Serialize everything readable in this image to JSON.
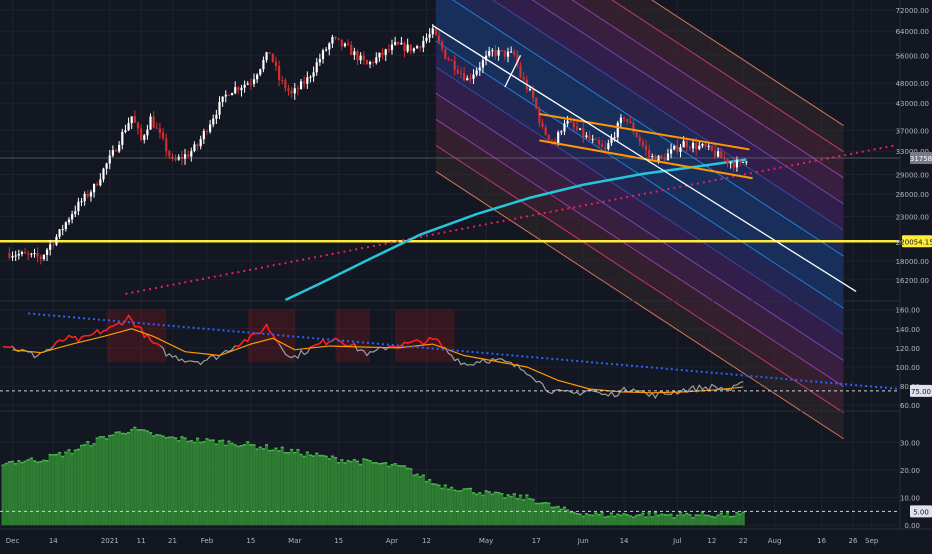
{
  "theme": {
    "background": "#131722",
    "grid": "#1e2230",
    "axis_text": "#b2b5be",
    "up": "#ffffff",
    "down": "#d32f2f",
    "ma": "#26c6da",
    "support": "#ffeb3b",
    "dotted_trend": "#e91e63",
    "wedge": "#ff9800",
    "osc_main": "#9e9e9e",
    "osc_hot": "#ff1a1a",
    "osc_signal": "#ff9800",
    "osc_trend": "#2962ff",
    "hist": "#2e7d32",
    "hist_edge": "#4caf50"
  },
  "chart_data": [
    {
      "type": "candlestick",
      "name": "price",
      "scale": "log",
      "ylim": [
        14500,
        76000
      ],
      "y_tick_labels": [
        "72000.00",
        "64000.00",
        "56000.00",
        "48000.00",
        "43000.00",
        "37000.00",
        "33000.00",
        "29000.00",
        "26000.00",
        "23000.00",
        "20000.00",
        "18000.00",
        "16200.00"
      ],
      "y_tick_values": [
        72000,
        64000,
        56000,
        48000,
        43000,
        37000,
        33000,
        29000,
        26000,
        23000,
        20000,
        18000,
        16200
      ],
      "current_price_label": "31758",
      "current_price": 31758,
      "support_label": "20054.15",
      "support_level": 20054.15,
      "price_path": [
        {
          "d": "2020-11-30",
          "p": 18800
        },
        {
          "d": "2020-12-10",
          "p": 18300
        },
        {
          "d": "2020-12-16",
          "p": 21000
        },
        {
          "d": "2020-12-20",
          "p": 23500
        },
        {
          "d": "2020-12-27",
          "p": 27000
        },
        {
          "d": "2021-01-02",
          "p": 32500
        },
        {
          "d": "2021-01-08",
          "p": 40000
        },
        {
          "d": "2021-01-11",
          "p": 35000
        },
        {
          "d": "2021-01-14",
          "p": 39500
        },
        {
          "d": "2021-01-21",
          "p": 31000
        },
        {
          "d": "2021-01-26",
          "p": 32500
        },
        {
          "d": "2021-01-29",
          "p": 34000
        },
        {
          "d": "2021-02-08",
          "p": 46000
        },
        {
          "d": "2021-02-15",
          "p": 48500
        },
        {
          "d": "2021-02-21",
          "p": 57000
        },
        {
          "d": "2021-02-24",
          "p": 49000
        },
        {
          "d": "2021-02-28",
          "p": 45000
        },
        {
          "d": "2021-03-05",
          "p": 49000
        },
        {
          "d": "2021-03-13",
          "p": 61000
        },
        {
          "d": "2021-03-18",
          "p": 58000
        },
        {
          "d": "2021-03-24",
          "p": 53000
        },
        {
          "d": "2021-04-02",
          "p": 59000
        },
        {
          "d": "2021-04-08",
          "p": 58000
        },
        {
          "d": "2021-04-14",
          "p": 63500
        },
        {
          "d": "2021-04-18",
          "p": 56000
        },
        {
          "d": "2021-04-25",
          "p": 49000
        },
        {
          "d": "2021-05-03",
          "p": 57000
        },
        {
          "d": "2021-05-10",
          "p": 56000
        },
        {
          "d": "2021-05-12",
          "p": 50000
        },
        {
          "d": "2021-05-16",
          "p": 44000
        },
        {
          "d": "2021-05-19",
          "p": 37000
        },
        {
          "d": "2021-05-23",
          "p": 34500
        },
        {
          "d": "2021-05-26",
          "p": 39000
        },
        {
          "d": "2021-06-01",
          "p": 36000
        },
        {
          "d": "2021-06-08",
          "p": 33000
        },
        {
          "d": "2021-06-14",
          "p": 40000
        },
        {
          "d": "2021-06-22",
          "p": 32000
        },
        {
          "d": "2021-06-26",
          "p": 31500
        },
        {
          "d": "2021-07-03",
          "p": 34500
        },
        {
          "d": "2021-07-10",
          "p": 33500
        },
        {
          "d": "2021-07-16",
          "p": 31500
        },
        {
          "d": "2021-07-21",
          "p": 30500
        },
        {
          "d": "2021-07-23",
          "p": 31800
        }
      ],
      "moving_average": [
        {
          "d": "2021-02-26",
          "p": 14500
        },
        {
          "d": "2021-03-10",
          "p": 16000
        },
        {
          "d": "2021-03-25",
          "p": 18200
        },
        {
          "d": "2021-04-10",
          "p": 20800
        },
        {
          "d": "2021-04-28",
          "p": 23300
        },
        {
          "d": "2021-05-15",
          "p": 25500
        },
        {
          "d": "2021-06-01",
          "p": 27400
        },
        {
          "d": "2021-06-20",
          "p": 29100
        },
        {
          "d": "2021-07-10",
          "p": 30500
        },
        {
          "d": "2021-07-23",
          "p": 31500
        }
      ],
      "dotted_trendline": [
        {
          "d": "2021-01-06",
          "p": 15000
        },
        {
          "d": "2021-09-08",
          "p": 34000
        }
      ],
      "descending_line": [
        {
          "d": "2021-04-14",
          "p": 66000
        },
        {
          "d": "2021-08-27",
          "p": 15200
        }
      ],
      "channel_midline": [
        {
          "d": "2021-04-15",
          "p": 70000
        },
        {
          "d": "2021-08-23",
          "p": 16000
        }
      ],
      "channel_band_ratio": 1.155,
      "wedge_upper": [
        {
          "d": "2021-05-18",
          "p": 40500
        },
        {
          "d": "2021-07-24",
          "p": 33300
        }
      ],
      "wedge_lower": [
        {
          "d": "2021-05-18",
          "p": 35000
        },
        {
          "d": "2021-07-25",
          "p": 28400
        }
      ],
      "upper_line": [
        {
          "d": "2021-05-07",
          "p": 47000
        },
        {
          "d": "2021-05-12",
          "p": 56000
        }
      ]
    },
    {
      "type": "line",
      "name": "oscillator",
      "ylim": [
        55,
        168
      ],
      "y_tick_labels": [
        "160.00",
        "140.00",
        "120.00",
        "100.00",
        "80.00",
        "60.00"
      ],
      "y_tick_values": [
        160,
        140,
        120,
        100,
        80,
        60
      ],
      "highlight_label": "75.00",
      "highlight_value": 75,
      "overbought_level": 120,
      "series": [
        {
          "values": [
            {
              "d": "2020-11-28",
              "v": 124
            },
            {
              "d": "2020-12-03",
              "v": 118
            },
            {
              "d": "2020-12-08",
              "v": 112
            },
            {
              "d": "2020-12-13",
              "v": 119
            },
            {
              "d": "2020-12-18",
              "v": 130
            },
            {
              "d": "2020-12-23",
              "v": 128
            },
            {
              "d": "2020-12-28",
              "v": 136
            },
            {
              "d": "2021-01-02",
              "v": 141
            },
            {
              "d": "2021-01-07",
              "v": 152
            },
            {
              "d": "2021-01-10",
              "v": 142
            },
            {
              "d": "2021-01-14",
              "v": 127
            },
            {
              "d": "2021-01-20",
              "v": 112
            },
            {
              "d": "2021-01-25",
              "v": 108
            },
            {
              "d": "2021-01-30",
              "v": 106
            },
            {
              "d": "2021-02-05",
              "v": 112
            },
            {
              "d": "2021-02-10",
              "v": 123
            },
            {
              "d": "2021-02-16",
              "v": 132
            },
            {
              "d": "2021-02-20",
              "v": 143
            },
            {
              "d": "2021-02-24",
              "v": 125
            },
            {
              "d": "2021-02-28",
              "v": 109
            },
            {
              "d": "2021-03-04",
              "v": 116
            },
            {
              "d": "2021-03-09",
              "v": 124
            },
            {
              "d": "2021-03-14",
              "v": 131
            },
            {
              "d": "2021-03-20",
              "v": 121
            },
            {
              "d": "2021-03-25",
              "v": 113
            },
            {
              "d": "2021-03-31",
              "v": 122
            },
            {
              "d": "2021-04-06",
              "v": 124
            },
            {
              "d": "2021-04-11",
              "v": 127
            },
            {
              "d": "2021-04-15",
              "v": 128
            },
            {
              "d": "2021-04-20",
              "v": 112
            },
            {
              "d": "2021-04-25",
              "v": 102
            },
            {
              "d": "2021-04-30",
              "v": 108
            },
            {
              "d": "2021-05-06",
              "v": 106
            },
            {
              "d": "2021-05-11",
              "v": 100
            },
            {
              "d": "2021-05-15",
              "v": 94
            },
            {
              "d": "2021-05-20",
              "v": 78
            },
            {
              "d": "2021-05-24",
              "v": 73
            },
            {
              "d": "2021-05-29",
              "v": 72
            },
            {
              "d": "2021-06-03",
              "v": 76
            },
            {
              "d": "2021-06-08",
              "v": 70
            },
            {
              "d": "2021-06-13",
              "v": 74
            },
            {
              "d": "2021-06-17",
              "v": 79
            },
            {
              "d": "2021-06-22",
              "v": 70
            },
            {
              "d": "2021-06-27",
              "v": 72
            },
            {
              "d": "2021-07-03",
              "v": 76
            },
            {
              "d": "2021-07-08",
              "v": 78
            },
            {
              "d": "2021-07-13",
              "v": 79
            },
            {
              "d": "2021-07-18",
              "v": 76
            },
            {
              "d": "2021-07-22",
              "v": 82
            }
          ]
        },
        {
          "values": [
            {
              "d": "2020-12-01",
              "v": 118
            },
            {
              "d": "2020-12-10",
              "v": 115
            },
            {
              "d": "2020-12-20",
              "v": 124
            },
            {
              "d": "2020-12-30",
              "v": 132
            },
            {
              "d": "2021-01-08",
              "v": 140
            },
            {
              "d": "2021-01-15",
              "v": 132
            },
            {
              "d": "2021-01-25",
              "v": 116
            },
            {
              "d": "2021-02-05",
              "v": 112
            },
            {
              "d": "2021-02-15",
              "v": 124
            },
            {
              "d": "2021-02-22",
              "v": 130
            },
            {
              "d": "2021-03-01",
              "v": 118
            },
            {
              "d": "2021-03-12",
              "v": 122
            },
            {
              "d": "2021-03-22",
              "v": 121
            },
            {
              "d": "2021-04-03",
              "v": 120
            },
            {
              "d": "2021-04-14",
              "v": 124
            },
            {
              "d": "2021-04-24",
              "v": 112
            },
            {
              "d": "2021-05-04",
              "v": 106
            },
            {
              "d": "2021-05-14",
              "v": 100
            },
            {
              "d": "2021-05-24",
              "v": 86
            },
            {
              "d": "2021-06-03",
              "v": 77
            },
            {
              "d": "2021-06-13",
              "v": 74
            },
            {
              "d": "2021-06-23",
              "v": 73
            },
            {
              "d": "2021-07-03",
              "v": 74
            },
            {
              "d": "2021-07-13",
              "v": 76
            },
            {
              "d": "2021-07-22",
              "v": 79
            }
          ]
        }
      ],
      "trendline": [
        {
          "d": "2020-12-06",
          "v": 156
        },
        {
          "d": "2021-09-10",
          "v": 77
        }
      ],
      "shaded_regions": [
        {
          "from": "2020-12-31",
          "to": "2021-01-19"
        },
        {
          "from": "2021-02-14",
          "to": "2021-03-01"
        },
        {
          "from": "2021-03-14",
          "to": "2021-03-25"
        },
        {
          "from": "2021-04-02",
          "to": "2021-04-21"
        }
      ]
    },
    {
      "type": "bar",
      "name": "histogram",
      "ylim": [
        -1,
        41
      ],
      "y_tick_labels": [
        "30.00",
        "20.00",
        "10.00",
        "0.00"
      ],
      "y_tick_values": [
        30,
        20,
        10,
        0
      ],
      "highlight_label": "5.00",
      "highlight_value": 5,
      "envelope": [
        {
          "d": "2020-11-28",
          "v": 23
        },
        {
          "d": "2020-12-10",
          "v": 24
        },
        {
          "d": "2020-12-20",
          "v": 27
        },
        {
          "d": "2020-12-30",
          "v": 32
        },
        {
          "d": "2021-01-08",
          "v": 35
        },
        {
          "d": "2021-01-18",
          "v": 32
        },
        {
          "d": "2021-01-28",
          "v": 31
        },
        {
          "d": "2021-02-10",
          "v": 30
        },
        {
          "d": "2021-02-22",
          "v": 28
        },
        {
          "d": "2021-03-05",
          "v": 26
        },
        {
          "d": "2021-03-15",
          "v": 24
        },
        {
          "d": "2021-03-25",
          "v": 23
        },
        {
          "d": "2021-04-05",
          "v": 21
        },
        {
          "d": "2021-04-15",
          "v": 15
        },
        {
          "d": "2021-04-25",
          "v": 13
        },
        {
          "d": "2021-05-05",
          "v": 11
        },
        {
          "d": "2021-05-15",
          "v": 10
        },
        {
          "d": "2021-05-22",
          "v": 7
        },
        {
          "d": "2021-05-28",
          "v": 5
        },
        {
          "d": "2021-06-05",
          "v": 4
        },
        {
          "d": "2021-06-20",
          "v": 4
        },
        {
          "d": "2021-07-05",
          "v": 4
        },
        {
          "d": "2021-07-22",
          "v": 4
        }
      ]
    }
  ],
  "x_axis": {
    "start": "2020-11-27",
    "end": "2021-09-10",
    "ticks": [
      {
        "label": "Dec",
        "d": "2020-12-01"
      },
      {
        "label": "14",
        "d": "2020-12-14"
      },
      {
        "label": "2021",
        "d": "2021-01-01"
      },
      {
        "label": "11",
        "d": "2021-01-11"
      },
      {
        "label": "21",
        "d": "2021-01-21"
      },
      {
        "label": "Feb",
        "d": "2021-02-01"
      },
      {
        "label": "15",
        "d": "2021-02-15"
      },
      {
        "label": "Mar",
        "d": "2021-03-01"
      },
      {
        "label": "15",
        "d": "2021-03-15"
      },
      {
        "label": "Apr",
        "d": "2021-04-01"
      },
      {
        "label": "12",
        "d": "2021-04-12"
      },
      {
        "label": "May",
        "d": "2021-05-01"
      },
      {
        "label": "17",
        "d": "2021-05-17"
      },
      {
        "label": "Jun",
        "d": "2021-06-01"
      },
      {
        "label": "14",
        "d": "2021-06-14"
      },
      {
        "label": "Jul",
        "d": "2021-07-01"
      },
      {
        "label": "12",
        "d": "2021-07-12"
      },
      {
        "label": "22",
        "d": "2021-07-22"
      },
      {
        "label": "Aug",
        "d": "2021-08-01"
      },
      {
        "label": "16",
        "d": "2021-08-16"
      },
      {
        "label": "26",
        "d": "2021-08-26"
      },
      {
        "label": "Sep",
        "d": "2021-09-01"
      }
    ]
  }
}
